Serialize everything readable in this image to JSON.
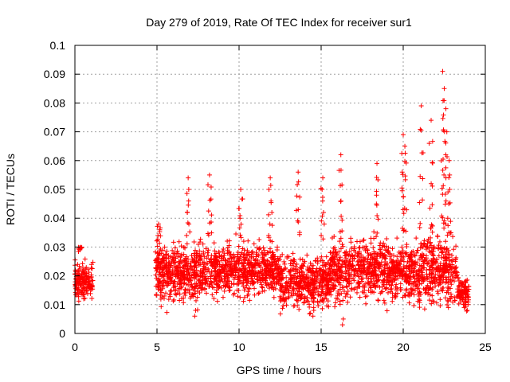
{
  "chart_data": {
    "type": "scatter",
    "title": "Day 279 of 2019, Rate Of TEC Index for receiver sur1",
    "xlabel": "GPS time / hours",
    "ylabel": "ROTI / TECUs",
    "xlim": [
      0,
      25
    ],
    "ylim": [
      0,
      0.1
    ],
    "x_ticks": [
      0,
      5,
      10,
      15,
      20,
      25
    ],
    "x_tick_labels": [
      "0",
      "5",
      "10",
      "15",
      "20",
      "25"
    ],
    "y_ticks": [
      0,
      0.01,
      0.02,
      0.03,
      0.04,
      0.05,
      0.06,
      0.07,
      0.08,
      0.09,
      0.1
    ],
    "y_tick_labels": [
      "0",
      "0.01",
      "0.02",
      "0.03",
      "0.04",
      "0.05",
      "0.06",
      "0.07",
      "0.08",
      "0.09",
      "0.1"
    ],
    "grid": true,
    "marker": "+",
    "series": [
      {
        "name": "ROTI",
        "color": "#ff0000",
        "segments": [
          {
            "start": 0.0,
            "end": 1.1,
            "mean": 0.018,
            "spread": 0.005
          },
          {
            "start": 4.9,
            "end": 8.5,
            "mean": 0.021,
            "spread": 0.008
          },
          {
            "start": 8.5,
            "end": 12.5,
            "mean": 0.022,
            "spread": 0.007
          },
          {
            "start": 12.5,
            "end": 15.5,
            "mean": 0.018,
            "spread": 0.007
          },
          {
            "start": 15.5,
            "end": 19.0,
            "mean": 0.022,
            "spread": 0.008
          },
          {
            "start": 19.0,
            "end": 21.0,
            "mean": 0.021,
            "spread": 0.008
          },
          {
            "start": 21.0,
            "end": 23.3,
            "mean": 0.022,
            "spread": 0.01
          },
          {
            "start": 23.3,
            "end": 24.0,
            "mean": 0.014,
            "spread": 0.004
          }
        ],
        "peaks": [
          {
            "x": 0.3,
            "y": 0.029
          },
          {
            "x": 5.1,
            "y": 0.038
          },
          {
            "x": 6.9,
            "y": 0.054
          },
          {
            "x": 8.2,
            "y": 0.055
          },
          {
            "x": 10.1,
            "y": 0.05
          },
          {
            "x": 11.9,
            "y": 0.054
          },
          {
            "x": 13.6,
            "y": 0.056
          },
          {
            "x": 15.1,
            "y": 0.054
          },
          {
            "x": 16.2,
            "y": 0.062
          },
          {
            "x": 18.4,
            "y": 0.059
          },
          {
            "x": 20.0,
            "y": 0.069
          },
          {
            "x": 20.1,
            "y": 0.065
          },
          {
            "x": 21.1,
            "y": 0.079
          },
          {
            "x": 21.7,
            "y": 0.074
          },
          {
            "x": 22.4,
            "y": 0.091
          },
          {
            "x": 22.5,
            "y": 0.085
          },
          {
            "x": 22.6,
            "y": 0.078
          },
          {
            "x": 22.8,
            "y": 0.06
          }
        ],
        "lows": [
          {
            "x": 7.3,
            "y": 0.006
          },
          {
            "x": 14.5,
            "y": 0.006
          },
          {
            "x": 16.3,
            "y": 0.003
          },
          {
            "x": 23.9,
            "y": 0.008
          }
        ]
      }
    ]
  }
}
